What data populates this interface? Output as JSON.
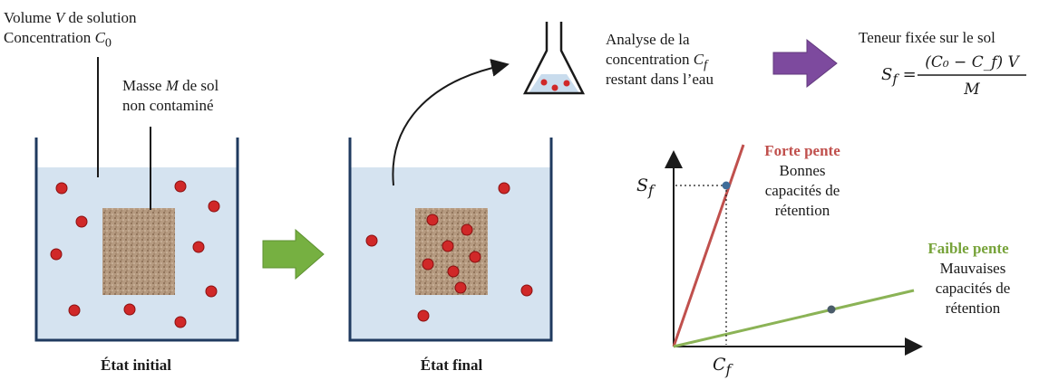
{
  "initial": {
    "solution_line1_pre": "Volume ",
    "solution_var_v": "V",
    "solution_line1_post": " de solution",
    "solution_line2_pre": "Concentration ",
    "solution_var_c0": "C",
    "solution_var_c0_sub": "0",
    "soil_line1_pre": "Masse ",
    "soil_var_m": "M",
    "soil_line1_post": " de sol",
    "soil_line2": "non contaminé",
    "caption": "État initial"
  },
  "final": {
    "caption": "État final"
  },
  "analysis": {
    "line1": "Analyse de la",
    "line2_pre": "concentration ",
    "line2_var": "C",
    "line2_sub": "f",
    "line3": "restant dans l’eau"
  },
  "result": {
    "title": "Teneur fixée sur le sol",
    "lhs_var": "S",
    "lhs_sub": "f",
    "numerator": "(C₀ − C_f) V",
    "denominator": "M"
  },
  "graph": {
    "y_axis_var": "S",
    "y_axis_sub": "f",
    "x_axis_var": "C",
    "x_axis_sub": "f",
    "steep": {
      "title": "Forte pente",
      "line1": "Bonnes",
      "line2": "capacités de",
      "line3": "rétention",
      "color": "#c0504d"
    },
    "shallow": {
      "title": "Faible pente",
      "line1": "Mauvaises",
      "line2": "capacités de",
      "line3": "rétention",
      "color": "#77a33a"
    }
  },
  "colors": {
    "water": "#d5e3f0",
    "beaker": "#1f3a5f",
    "particle": "#d02828",
    "soil": "#b09478",
    "arrow_green": "#76b041",
    "arrow_purple": "#7d4a9e",
    "marker": "#3f6d9a"
  }
}
